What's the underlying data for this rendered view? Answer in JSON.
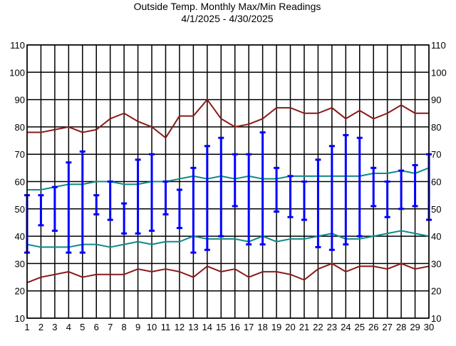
{
  "chart_data": {
    "type": "line",
    "title": "Outside Temp. Monthly Max/Min Readings",
    "subtitle": "4/1/2025 - 4/30/2025",
    "xlabel": "",
    "ylabel": "",
    "x": [
      1,
      2,
      3,
      4,
      5,
      6,
      7,
      8,
      9,
      10,
      11,
      12,
      13,
      14,
      15,
      16,
      17,
      18,
      19,
      20,
      21,
      22,
      23,
      24,
      25,
      26,
      27,
      28,
      29,
      30
    ],
    "xlim": [
      1,
      30
    ],
    "ylim": [
      10,
      110
    ],
    "yticks": [
      10,
      20,
      30,
      40,
      50,
      60,
      70,
      80,
      90,
      100,
      110
    ],
    "grid": true,
    "series": [
      {
        "kind": "line",
        "color": "#8b1a1a",
        "values": [
          78,
          78,
          79,
          80,
          78,
          79,
          83,
          85,
          82,
          80,
          76,
          84,
          84,
          90,
          83,
          80,
          81,
          83,
          87,
          87,
          85,
          85,
          87,
          83,
          86,
          83,
          85,
          88,
          85,
          85
        ]
      },
      {
        "kind": "line",
        "color": "#0d8a8a",
        "values": [
          57,
          57,
          58,
          59,
          59,
          60,
          60,
          59,
          59,
          60,
          60,
          61,
          62,
          61,
          62,
          61,
          62,
          61,
          61,
          62,
          62,
          62,
          62,
          62,
          62,
          63,
          63,
          64,
          63,
          65
        ]
      },
      {
        "kind": "line",
        "color": "#0d8a8a",
        "values": [
          37,
          36,
          36,
          36,
          37,
          37,
          36,
          37,
          38,
          37,
          38,
          38,
          40,
          39,
          39,
          39,
          38,
          40,
          38,
          39,
          39,
          40,
          41,
          39,
          39,
          40,
          41,
          42,
          41,
          40
        ]
      },
      {
        "kind": "line",
        "color": "#8b1a1a",
        "values": [
          23,
          25,
          26,
          27,
          25,
          26,
          26,
          26,
          28,
          27,
          28,
          27,
          25,
          29,
          27,
          28,
          25,
          27,
          27,
          26,
          24,
          28,
          30,
          27,
          29,
          29,
          28,
          30,
          28,
          29
        ]
      },
      {
        "kind": "range",
        "color": "#0000ff",
        "low": [
          34,
          44,
          42,
          34,
          34,
          48,
          46,
          41,
          41,
          42,
          48,
          43,
          34,
          35,
          40,
          51,
          37,
          37,
          49,
          47,
          46,
          36,
          35,
          37,
          40,
          51,
          47,
          50,
          51,
          46
        ],
        "high": [
          55,
          55,
          58,
          67,
          71,
          55,
          60,
          52,
          68,
          70,
          60,
          57,
          65,
          73,
          76,
          70,
          70,
          78,
          65,
          62,
          60,
          68,
          73,
          77,
          76,
          65,
          60,
          64,
          66,
          70
        ]
      }
    ]
  }
}
